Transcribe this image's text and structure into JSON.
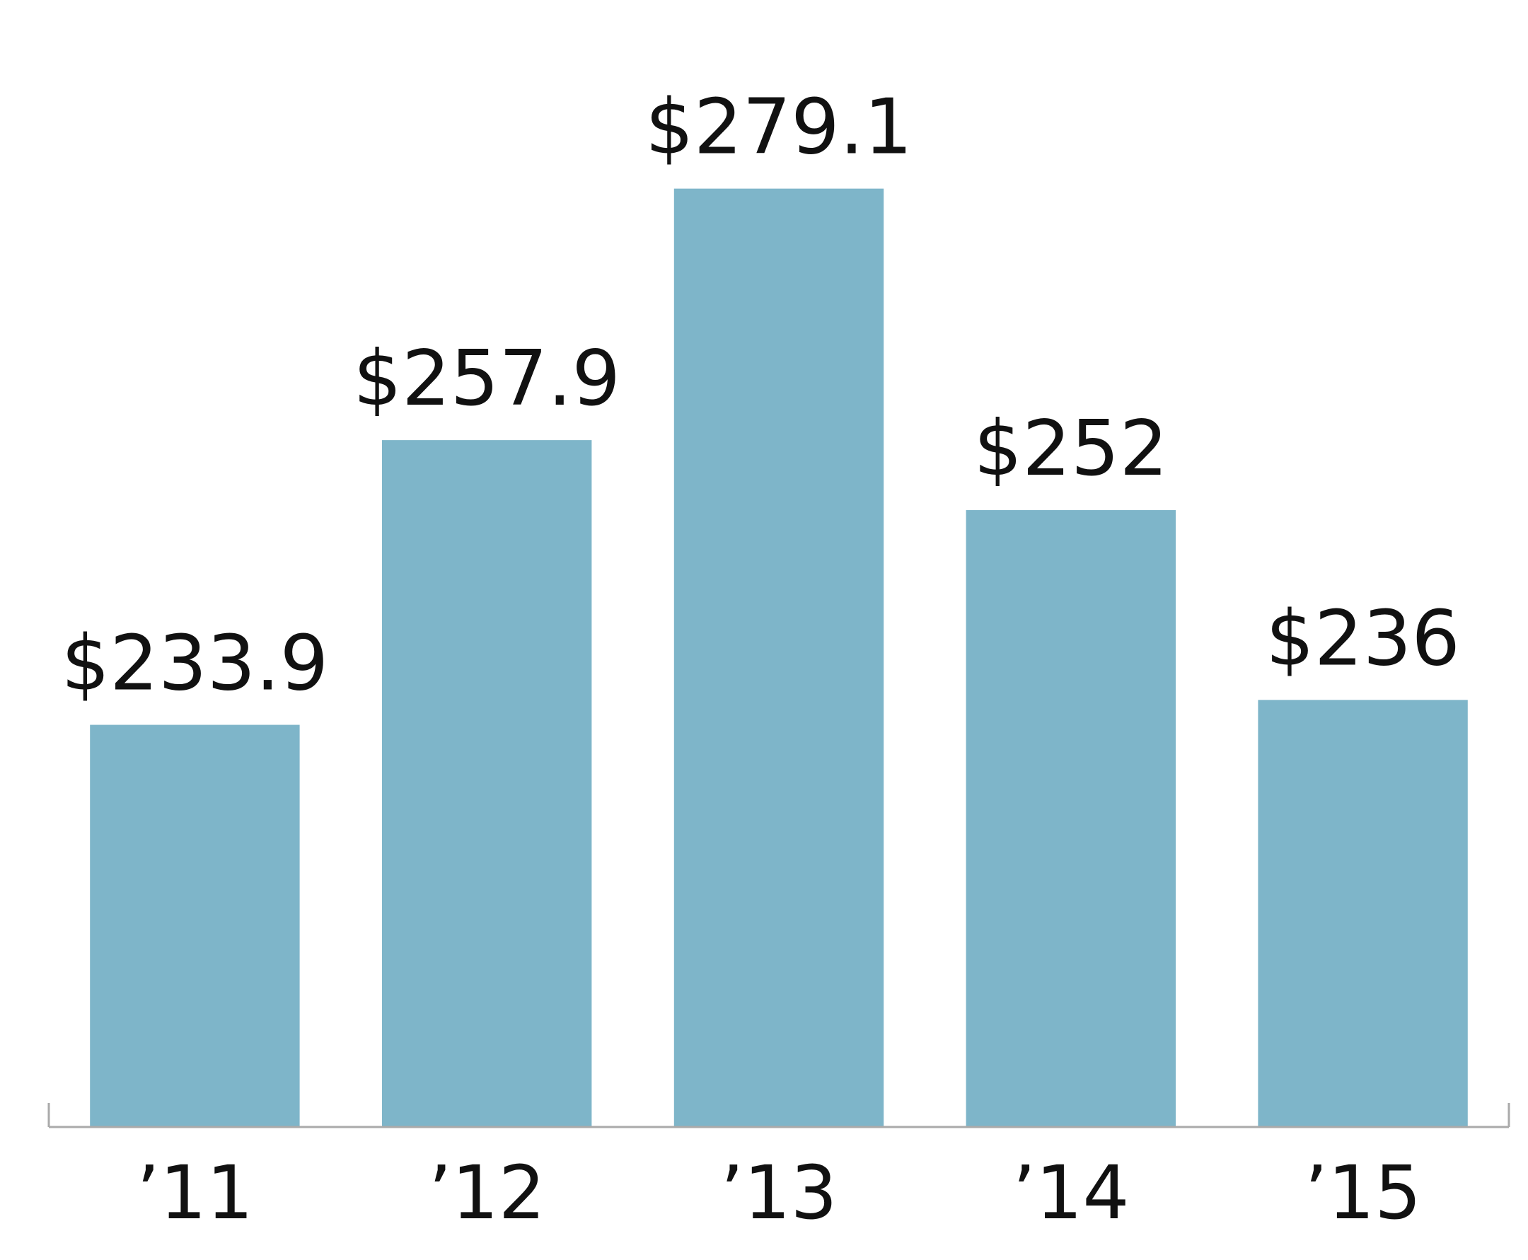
{
  "chart_data": {
    "type": "bar",
    "categories": [
      "’11",
      "’12",
      "’13",
      "’14",
      "’15"
    ],
    "values": [
      233.9,
      257.9,
      279.1,
      252,
      236
    ],
    "value_labels": [
      "$233.9",
      "$257.9",
      "$279.1",
      "$252",
      "$236"
    ],
    "color": "#7eb5c9",
    "ylim": [
      200,
      295
    ],
    "grid": false
  }
}
